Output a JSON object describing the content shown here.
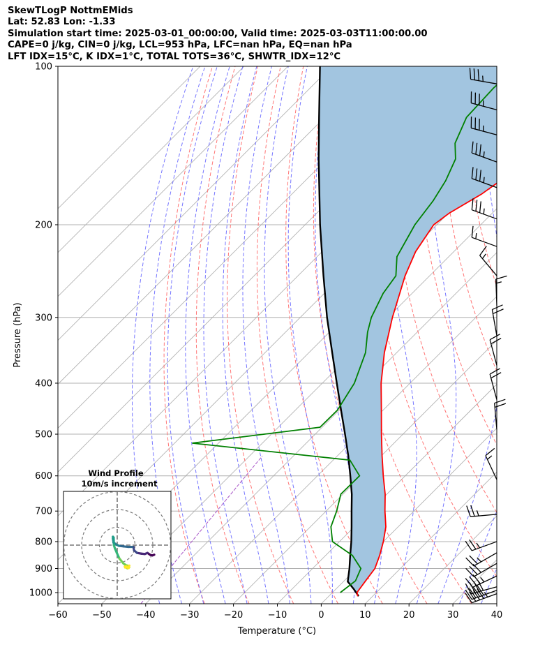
{
  "header": {
    "line1": "SkewTLogP NottmEMids",
    "line2": "Lat: 52.83   Lon: -1.33",
    "line3": "Simulation start time: 2025-03-01_00:00:00, Valid time: 2025-03-03T11:00:00.00",
    "line4": "CAPE=0 j/kg, CIN=0 j/kg, LCL=953 hPa, LFC=nan hPa, EQ=nan hPa",
    "line5": "LFT IDX=15°C, K IDX=1°C, TOTAL TOTS=36°C, SHWTR_IDX=12°C"
  },
  "chart_data": {
    "type": "skewt",
    "xlabel": "Temperature (°C)",
    "ylabel": "Pressure (hPa)",
    "xlim": [
      -60,
      40
    ],
    "ylim": [
      1050,
      100
    ],
    "x_ticks": [
      -60,
      -50,
      -40,
      -30,
      -20,
      -10,
      0,
      10,
      20,
      30,
      40
    ],
    "x_tick_labels": [
      "−60",
      "−50",
      "−40",
      "−30",
      "−20",
      "−10",
      "0",
      "10",
      "20",
      "30",
      "40"
    ],
    "y_ticks": [
      1000,
      900,
      800,
      700,
      600,
      500,
      400,
      300,
      200,
      100
    ],
    "y_tick_labels": [
      "1000",
      "900",
      "800",
      "700",
      "600",
      "500",
      "400",
      "300",
      "200",
      "100"
    ],
    "colors": {
      "temperature": "#ff0000",
      "dewpoint": "#008000",
      "parcel": "#000000",
      "shading": "#a2c5e0",
      "dry_adiabats": "#ff6666",
      "moist_adiabats": "#6666ff",
      "mixing_ratio": "#a855c8",
      "isotherms": "#aaaaaa",
      "grid": "#b0b0b0"
    },
    "temperature_profile": [
      {
        "p": 1016,
        "t": 6.6
      },
      {
        "p": 1000,
        "t": 5.6
      },
      {
        "p": 950,
        "t": 4.9
      },
      {
        "p": 900,
        "t": 4.2
      },
      {
        "p": 850,
        "t": 2.3
      },
      {
        "p": 800,
        "t": 0.0
      },
      {
        "p": 750,
        "t": -2.8
      },
      {
        "p": 700,
        "t": -6.6
      },
      {
        "p": 650,
        "t": -10.4
      },
      {
        "p": 600,
        "t": -15.0
      },
      {
        "p": 550,
        "t": -19.8
      },
      {
        "p": 500,
        "t": -24.9
      },
      {
        "p": 450,
        "t": -30.4
      },
      {
        "p": 400,
        "t": -36.6
      },
      {
        "p": 350,
        "t": -42.8
      },
      {
        "p": 300,
        "t": -49.0
      },
      {
        "p": 250,
        "t": -55.6
      },
      {
        "p": 225,
        "t": -58.7
      },
      {
        "p": 200,
        "t": -60.7
      },
      {
        "p": 190,
        "t": -59.8
      },
      {
        "p": 175,
        "t": -56.8
      },
      {
        "p": 150,
        "t": -53.6
      },
      {
        "p": 125,
        "t": -51.7
      },
      {
        "p": 110,
        "t": -50.5
      },
      {
        "p": 100,
        "t": -50.4
      }
    ],
    "dewpoint_profile": [
      {
        "p": 1000,
        "t": 1.8
      },
      {
        "p": 950,
        "t": 2.6
      },
      {
        "p": 900,
        "t": 1.0
      },
      {
        "p": 850,
        "t": -3.9
      },
      {
        "p": 800,
        "t": -11.6
      },
      {
        "p": 750,
        "t": -15.3
      },
      {
        "p": 700,
        "t": -17.6
      },
      {
        "p": 650,
        "t": -20.5
      },
      {
        "p": 600,
        "t": -20.4
      },
      {
        "p": 560,
        "t": -26.2
      },
      {
        "p": 520,
        "t": -66.0
      },
      {
        "p": 485,
        "t": -40.5
      },
      {
        "p": 450,
        "t": -40.4
      },
      {
        "p": 400,
        "t": -42.7
      },
      {
        "p": 350,
        "t": -47.1
      },
      {
        "p": 320,
        "t": -51.3
      },
      {
        "p": 300,
        "t": -53.8
      },
      {
        "p": 270,
        "t": -56.6
      },
      {
        "p": 250,
        "t": -57.7
      },
      {
        "p": 230,
        "t": -61.8
      },
      {
        "p": 200,
        "t": -65.0
      },
      {
        "p": 180,
        "t": -66.3
      },
      {
        "p": 165,
        "t": -68.0
      },
      {
        "p": 150,
        "t": -70.7
      },
      {
        "p": 140,
        "t": -74.4
      },
      {
        "p": 125,
        "t": -77.7
      },
      {
        "p": 110,
        "t": -78.2
      },
      {
        "p": 100,
        "t": -77.7
      }
    ],
    "parcel_profile": [
      {
        "p": 1016,
        "t": 6.8
      },
      {
        "p": 985,
        "t": 4.1
      },
      {
        "p": 953,
        "t": 1.0
      },
      {
        "p": 900,
        "t": -1.6
      },
      {
        "p": 850,
        "t": -4.4
      },
      {
        "p": 800,
        "t": -7.3
      },
      {
        "p": 750,
        "t": -10.6
      },
      {
        "p": 700,
        "t": -14.2
      },
      {
        "p": 650,
        "t": -18.0
      },
      {
        "p": 600,
        "t": -22.5
      },
      {
        "p": 550,
        "t": -27.5
      },
      {
        "p": 500,
        "t": -33.2
      },
      {
        "p": 450,
        "t": -39.6
      },
      {
        "p": 400,
        "t": -46.7
      },
      {
        "p": 350,
        "t": -54.7
      },
      {
        "p": 300,
        "t": -63.9
      },
      {
        "p": 250,
        "t": -74.2
      },
      {
        "p": 200,
        "t": -86.6
      },
      {
        "p": 150,
        "t": -101.9
      },
      {
        "p": 125,
        "t": -111.3
      },
      {
        "p": 100,
        "t": -122.7
      }
    ],
    "wind_barbs": [
      {
        "p": 1005,
        "speed_kt": 45,
        "dir": 250
      },
      {
        "p": 990,
        "speed_kt": 40,
        "dir": 250
      },
      {
        "p": 975,
        "speed_kt": 40,
        "dir": 255
      },
      {
        "p": 930,
        "speed_kt": 35,
        "dir": 245
      },
      {
        "p": 880,
        "speed_kt": 30,
        "dir": 240
      },
      {
        "p": 840,
        "speed_kt": 25,
        "dir": 240
      },
      {
        "p": 800,
        "speed_kt": 25,
        "dir": 250
      },
      {
        "p": 710,
        "speed_kt": 25,
        "dir": 265
      },
      {
        "p": 610,
        "speed_kt": 15,
        "dir": 335
      },
      {
        "p": 490,
        "speed_kt": 20,
        "dir": 355
      },
      {
        "p": 430,
        "speed_kt": 20,
        "dir": 345
      },
      {
        "p": 370,
        "speed_kt": 20,
        "dir": 345
      },
      {
        "p": 325,
        "speed_kt": 20,
        "dir": 350
      },
      {
        "p": 285,
        "speed_kt": 15,
        "dir": 358
      },
      {
        "p": 250,
        "speed_kt": 15,
        "dir": 320
      },
      {
        "p": 220,
        "speed_kt": 15,
        "dir": 290
      },
      {
        "p": 195,
        "speed_kt": 35,
        "dir": 290
      },
      {
        "p": 170,
        "speed_kt": 35,
        "dir": 290
      },
      {
        "p": 152,
        "speed_kt": 35,
        "dir": 290
      },
      {
        "p": 135,
        "speed_kt": 35,
        "dir": 285
      },
      {
        "p": 121,
        "speed_kt": 35,
        "dir": 285
      },
      {
        "p": 108,
        "speed_kt": 35,
        "dir": 280
      }
    ],
    "hodograph": {
      "title": "Wind Profile",
      "subtitle": "10m/s increment",
      "ring_increment_ms": 10,
      "rings": 3,
      "colormap": "viridis",
      "points": [
        {
          "u": 20.8,
          "v": 5.4
        },
        {
          "u": 19.8,
          "v": 5.8
        },
        {
          "u": 18.6,
          "v": 5.5
        },
        {
          "u": 17.0,
          "v": 4.4
        },
        {
          "u": 15.5,
          "v": 5.0
        },
        {
          "u": 13.6,
          "v": 4.8
        },
        {
          "u": 11.2,
          "v": 4.4
        },
        {
          "u": 9.5,
          "v": 3.0
        },
        {
          "u": 9.1,
          "v": 1.0
        },
        {
          "u": 8.4,
          "v": 1.0
        },
        {
          "u": 6.2,
          "v": 1.0
        },
        {
          "u": 3.5,
          "v": 0.7
        },
        {
          "u": 1.0,
          "v": 0.4
        },
        {
          "u": -0.5,
          "v": -0.3
        },
        {
          "u": -2.1,
          "v": -1.5
        },
        {
          "u": -2.4,
          "v": -3.7
        },
        {
          "u": -2.4,
          "v": -4.7
        },
        {
          "u": -2.0,
          "v": -4.2
        },
        {
          "u": -1.9,
          "v": 0.0
        },
        {
          "u": -1.3,
          "v": 1.8
        },
        {
          "u": -0.3,
          "v": 4.2
        },
        {
          "u": 1.2,
          "v": 7.5
        },
        {
          "u": 3.4,
          "v": 10.2
        },
        {
          "u": 5.1,
          "v": 11.4
        },
        {
          "u": 5.7,
          "v": 13.0
        },
        {
          "u": 6.7,
          "v": 12.5
        },
        {
          "u": 5.8,
          "v": 11.5
        },
        {
          "u": 4.3,
          "v": 12.0
        },
        {
          "u": 4.5,
          "v": 12.6
        },
        {
          "u": 5.0,
          "v": 12.1
        },
        {
          "u": 6.4,
          "v": 12.9
        },
        {
          "u": 6.8,
          "v": 11.5
        }
      ]
    }
  }
}
